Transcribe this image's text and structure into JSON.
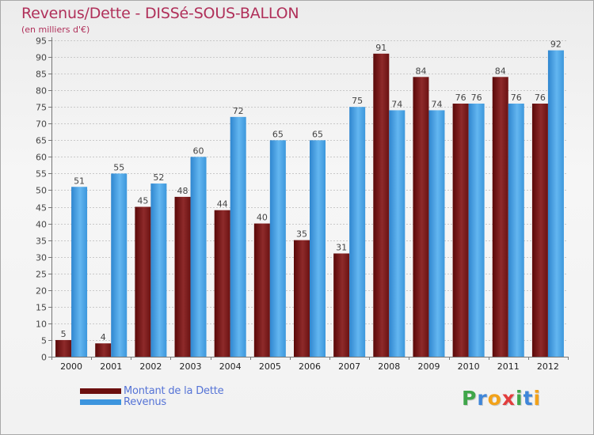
{
  "title": "Revenus/Dette - DISSé-SOUS-BALLON",
  "subtitle": "(en milliers d'€)",
  "colors": {
    "title": "#b0305a",
    "debt": "#7a1a1a",
    "revenue": "#4aa3e6",
    "legend_text": "#5573d6"
  },
  "legend": [
    {
      "label": "Montant de la Dette",
      "color": "#6b0f0f"
    },
    {
      "label": "Revenus",
      "color": "#3d95de"
    }
  ],
  "logo": {
    "letters": [
      "P",
      "r",
      "o",
      "x",
      "i",
      "t",
      "i"
    ]
  },
  "chart_data": {
    "type": "bar",
    "title": "Revenus/Dette - DISSé-SOUS-BALLON",
    "ylabel": "(en milliers d'€)",
    "xlabel": "",
    "categories": [
      "2000",
      "2001",
      "2002",
      "2003",
      "2004",
      "2005",
      "2006",
      "2007",
      "2008",
      "2009",
      "2010",
      "2011",
      "2012"
    ],
    "series": [
      {
        "name": "Montant de la Dette",
        "values": [
          5,
          4,
          45,
          48,
          44,
          40,
          35,
          31,
          91,
          84,
          76,
          84,
          76
        ]
      },
      {
        "name": "Revenus",
        "values": [
          51,
          55,
          52,
          60,
          72,
          65,
          65,
          75,
          74,
          74,
          76,
          76,
          92
        ]
      }
    ],
    "ylim": [
      0,
      95
    ],
    "ytick_step": 5,
    "grid": true,
    "legend_position": "bottom-left"
  }
}
